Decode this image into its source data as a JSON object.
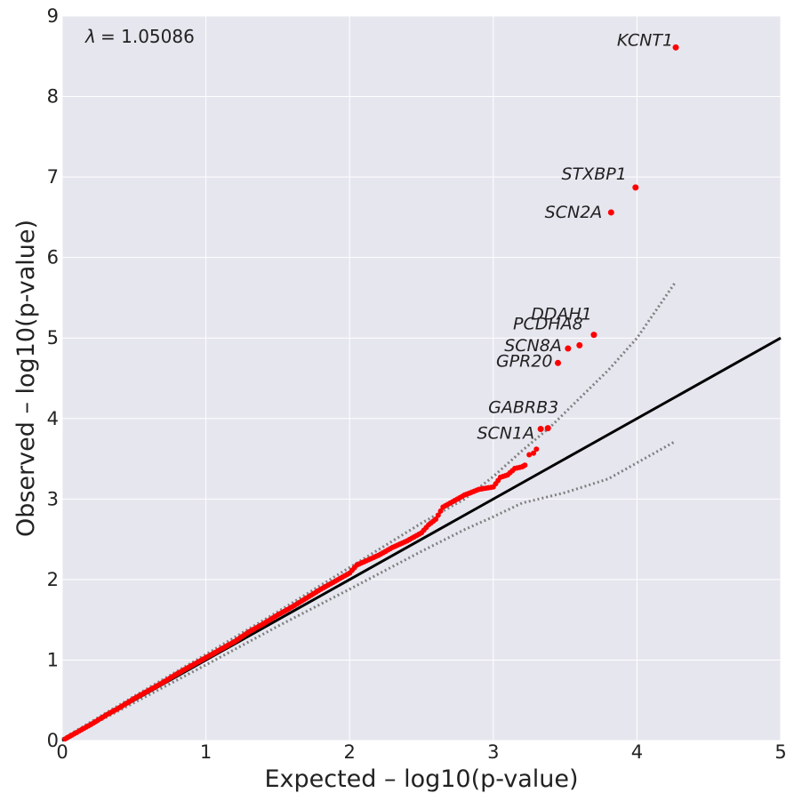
{
  "chart_data": {
    "type": "scatter",
    "title": "",
    "xlabel": "Expected – log10(p-value)",
    "ylabel": "Observed – log10(p-value)",
    "xlim": [
      0,
      5
    ],
    "ylim": [
      0,
      9
    ],
    "x_ticks": [
      "0",
      "1",
      "2",
      "3",
      "4",
      "5"
    ],
    "y_ticks": [
      "0",
      "1",
      "2",
      "3",
      "4",
      "5",
      "6",
      "7",
      "8",
      "9"
    ],
    "grid": true,
    "background": "#e6e6ef",
    "lambda_symbol": "λ",
    "lambda_text": "= 1.05086",
    "colors": {
      "points": "#ff0000",
      "reference_line": "#000000",
      "confidence": "#808080"
    },
    "reference_line": {
      "x": [
        0,
        5
      ],
      "y": [
        0,
        5
      ]
    },
    "confidence_upper": {
      "x": [
        0,
        0.5,
        1.0,
        1.5,
        2.0,
        2.5,
        2.8,
        3.0,
        3.2,
        3.4,
        3.6,
        3.8,
        4.0,
        4.27
      ],
      "y": [
        0.02,
        0.55,
        1.07,
        1.6,
        2.15,
        2.7,
        3.0,
        3.28,
        3.6,
        3.9,
        4.25,
        4.6,
        5.0,
        5.7
      ]
    },
    "confidence_lower": {
      "x": [
        0,
        0.5,
        1.0,
        1.5,
        2.0,
        2.5,
        2.8,
        3.0,
        3.2,
        3.5,
        3.8,
        4.0,
        4.27
      ],
      "y": [
        0,
        0.47,
        0.94,
        1.42,
        1.88,
        2.35,
        2.62,
        2.78,
        2.95,
        3.08,
        3.25,
        3.45,
        3.72
      ]
    },
    "series_bulk": {
      "x": [
        0.02,
        0.1,
        0.2,
        0.3,
        0.4,
        0.5,
        0.6,
        0.7,
        0.8,
        0.9,
        1.0,
        1.1,
        1.2,
        1.3,
        1.4,
        1.5,
        1.6,
        1.7,
        1.8,
        1.9,
        2.0,
        2.05,
        2.1,
        2.2,
        2.3,
        2.4,
        2.5,
        2.55,
        2.6,
        2.65,
        2.7,
        2.8,
        2.9,
        3.0,
        3.05,
        3.1,
        3.15,
        3.2,
        3.22
      ],
      "y": [
        0.02,
        0.1,
        0.2,
        0.31,
        0.41,
        0.52,
        0.62,
        0.72,
        0.83,
        0.93,
        1.03,
        1.13,
        1.23,
        1.35,
        1.45,
        1.56,
        1.66,
        1.77,
        1.88,
        1.98,
        2.08,
        2.18,
        2.22,
        2.3,
        2.4,
        2.48,
        2.58,
        2.68,
        2.75,
        2.9,
        2.95,
        3.05,
        3.12,
        3.15,
        3.27,
        3.3,
        3.38,
        3.4,
        3.42
      ]
    },
    "labeled_points": [
      {
        "name": "SCN1A",
        "x": 3.33,
        "y": 3.87
      },
      {
        "name": "GABRB3",
        "x": 3.38,
        "y": 3.88
      },
      {
        "name": "GPR20",
        "x": 3.45,
        "y": 4.69
      },
      {
        "name": "SCN8A",
        "x": 3.52,
        "y": 4.87
      },
      {
        "name": "PCDHA8",
        "x": 3.6,
        "y": 4.91
      },
      {
        "name": "DDAH1",
        "x": 3.7,
        "y": 5.04
      },
      {
        "name": "SCN2A",
        "x": 3.82,
        "y": 6.56
      },
      {
        "name": "STXBP1",
        "x": 3.99,
        "y": 6.87
      },
      {
        "name": "KCNT1",
        "x": 4.27,
        "y": 8.61
      }
    ],
    "extra_points": {
      "x": [
        3.25,
        3.28,
        3.3
      ],
      "y": [
        3.55,
        3.57,
        3.62
      ]
    }
  }
}
